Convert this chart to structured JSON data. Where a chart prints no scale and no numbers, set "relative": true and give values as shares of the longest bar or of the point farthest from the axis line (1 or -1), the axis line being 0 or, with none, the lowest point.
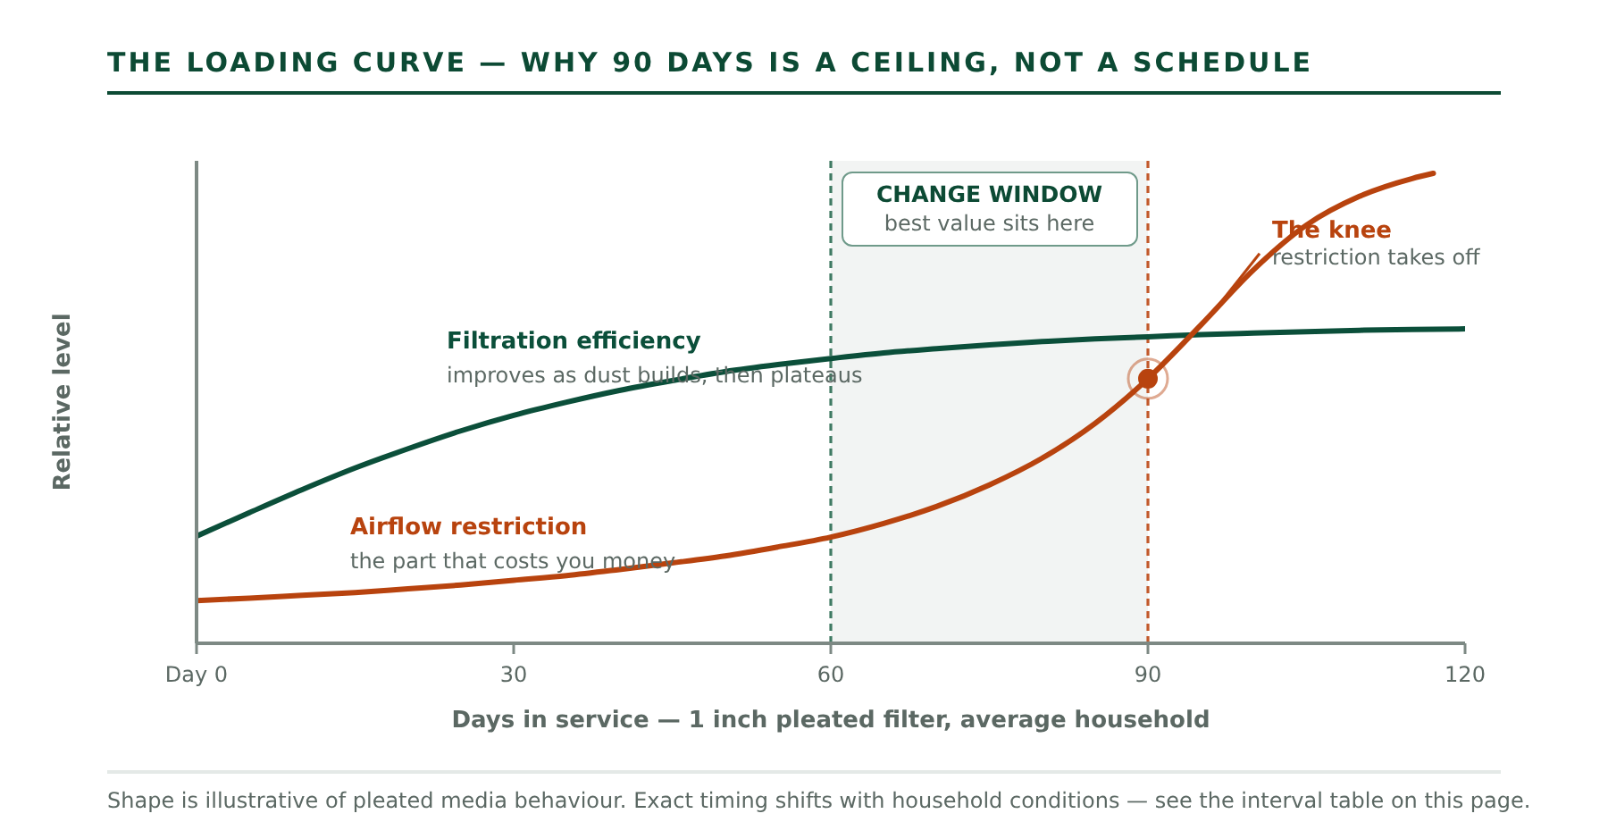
{
  "chart_data": {
    "type": "line",
    "title": "THE LOADING CURVE — WHY 90 DAYS IS A CEILING, NOT A SCHEDULE",
    "xlabel": "Days in service — 1 inch pleated filter, average household",
    "ylabel": "Relative level",
    "relative": true,
    "x": [
      0,
      5,
      10,
      15,
      20,
      25,
      30,
      35,
      40,
      45,
      50,
      55,
      60,
      65,
      70,
      75,
      80,
      85,
      90,
      95,
      100,
      105,
      110,
      115,
      120
    ],
    "xlim": [
      0,
      120
    ],
    "xticks": [
      {
        "value": 0,
        "label": "Day 0"
      },
      30,
      60,
      90,
      120
    ],
    "series": [
      {
        "name": "Filtration efficiency",
        "color": "#0b4f3a",
        "values": [
          0.228,
          0.278,
          0.327,
          0.373,
          0.414,
          0.452,
          0.485,
          0.513,
          0.538,
          0.559,
          0.578,
          0.593,
          0.606,
          0.618,
          0.627,
          0.635,
          0.642,
          0.648,
          0.652,
          0.657,
          0.66,
          0.663,
          0.666,
          0.668,
          0.669
        ]
      },
      {
        "name": "Airflow restriction",
        "color": "#b8430e",
        "x": [
          0,
          5,
          10,
          15,
          20,
          25,
          30,
          35,
          40,
          45,
          50,
          55,
          60,
          65,
          70,
          75,
          80,
          85,
          90,
          95,
          100,
          105,
          110,
          115,
          117
        ],
        "values": [
          0.091,
          0.096,
          0.102,
          0.108,
          0.116,
          0.124,
          0.134,
          0.144,
          0.157,
          0.171,
          0.186,
          0.205,
          0.226,
          0.255,
          0.291,
          0.337,
          0.394,
          0.468,
          0.563,
          0.677,
          0.795,
          0.89,
          0.951,
          0.989,
          1
        ]
      },
      {
        "type": "scatter",
        "color": "#b8430e",
        "marker": "circle",
        "x": [
          90
        ],
        "values": [
          0.563
        ]
      }
    ],
    "bands": [
      {
        "axis": "x",
        "from": 60,
        "to": 90,
        "label": "CHANGE WINDOW",
        "color": "#f2f4f3"
      }
    ],
    "ref_lines": [
      {
        "axis": "x",
        "value": 60,
        "color": "#3f7a63",
        "line_style": "dashed"
      },
      {
        "axis": "x",
        "value": 90,
        "color": "#c2592b",
        "line_style": "dashed"
      }
    ],
    "annotations": [
      "improves as dust builds, then plateaus",
      "the part that costs you money",
      "best value sits here",
      {
        "text": "The knee",
        "x": 96,
        "y": 0.7
      },
      "restriction takes off",
      "Shape is illustrative of pleated media behaviour. Exact timing shifts with household conditions — see the interval table on this page."
    ],
    "line_style": "solid"
  }
}
